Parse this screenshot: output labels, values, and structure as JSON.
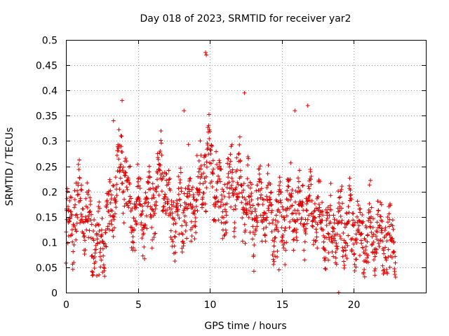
{
  "chart_data": {
    "type": "scatter",
    "title": "Day 018 of 2023, SRMTID for receiver yar2",
    "xlabel": "GPS time / hours",
    "ylabel": "SRMTID / TECUs",
    "xlim": [
      0,
      25
    ],
    "ylim": [
      0,
      0.5
    ],
    "x_ticks": [
      0,
      5,
      10,
      15,
      20
    ],
    "x_tick_labels": [
      "0",
      "5",
      "10",
      "15",
      "20"
    ],
    "y_ticks": [
      0,
      0.05,
      0.1,
      0.15,
      0.2,
      0.25,
      0.3,
      0.35,
      0.4,
      0.45,
      0.5
    ],
    "y_tick_labels": [
      "0",
      "0.05",
      "0.1",
      "0.15",
      "0.2",
      "0.25",
      "0.3",
      "0.35",
      "0.4",
      "0.45",
      "0.5"
    ],
    "grid": true,
    "marker": "+",
    "marker_color": "#e00000",
    "series": [
      {
        "name": "SRMTID",
        "x_range": [
          0.0,
          22.9
        ],
        "approx_trend": [
          [
            0.0,
            0.11
          ],
          [
            0.5,
            0.14
          ],
          [
            0.9,
            0.17
          ],
          [
            1.3,
            0.16
          ],
          [
            1.8,
            0.11
          ],
          [
            2.4,
            0.09
          ],
          [
            3.0,
            0.14
          ],
          [
            3.5,
            0.22
          ],
          [
            3.9,
            0.26
          ],
          [
            4.5,
            0.15
          ],
          [
            5.0,
            0.16
          ],
          [
            5.6,
            0.15
          ],
          [
            6.2,
            0.19
          ],
          [
            6.7,
            0.24
          ],
          [
            7.2,
            0.16
          ],
          [
            7.8,
            0.15
          ],
          [
            8.3,
            0.18
          ],
          [
            8.8,
            0.17
          ],
          [
            9.3,
            0.2
          ],
          [
            9.7,
            0.25
          ],
          [
            10.1,
            0.27
          ],
          [
            10.5,
            0.19
          ],
          [
            11.0,
            0.17
          ],
          [
            11.6,
            0.22
          ],
          [
            12.1,
            0.2
          ],
          [
            12.6,
            0.17
          ],
          [
            13.0,
            0.15
          ],
          [
            13.5,
            0.17
          ],
          [
            14.0,
            0.17
          ],
          [
            14.5,
            0.14
          ],
          [
            15.0,
            0.14
          ],
          [
            15.5,
            0.17
          ],
          [
            16.0,
            0.16
          ],
          [
            16.5,
            0.17
          ],
          [
            17.0,
            0.17
          ],
          [
            17.5,
            0.15
          ],
          [
            18.0,
            0.12
          ],
          [
            18.5,
            0.12
          ],
          [
            19.0,
            0.13
          ],
          [
            19.5,
            0.12
          ],
          [
            20.0,
            0.12
          ],
          [
            20.5,
            0.11
          ],
          [
            21.0,
            0.11
          ],
          [
            21.5,
            0.12
          ],
          [
            22.0,
            0.1
          ],
          [
            22.5,
            0.1
          ],
          [
            22.9,
            0.1
          ]
        ],
        "highlights": [
          [
            9.7,
            0.475
          ],
          [
            9.75,
            0.47
          ],
          [
            12.4,
            0.395
          ],
          [
            3.9,
            0.38
          ],
          [
            16.8,
            0.37
          ],
          [
            15.9,
            0.36
          ],
          [
            3.3,
            0.34
          ],
          [
            6.6,
            0.32
          ],
          [
            8.2,
            0.36
          ],
          [
            2.3,
            0.035
          ],
          [
            18.95,
            0.0
          ],
          [
            14.8,
            0.045
          ],
          [
            22.5,
            0.05
          ]
        ]
      }
    ]
  }
}
